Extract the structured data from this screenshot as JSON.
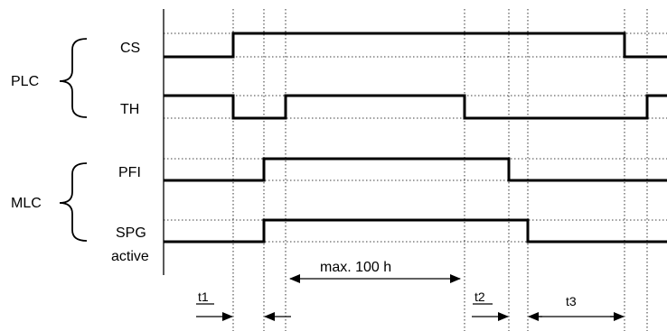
{
  "groups": {
    "plc": "PLC",
    "mlc": "MLC"
  },
  "signals": {
    "cs": "CS",
    "th": "TH",
    "pfi": "PFI",
    "spg_line1": "SPG",
    "spg_line2": "active"
  },
  "annotations": {
    "max_duration": "max. 100 h",
    "t1": "t1",
    "t2": "t2",
    "t3": "t3"
  }
}
